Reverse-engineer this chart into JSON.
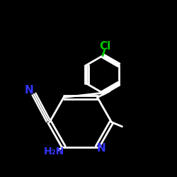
{
  "background_color": "#000000",
  "bond_color": "#ffffff",
  "N_color": "#3333ff",
  "Cl_color": "#00cc00",
  "figsize": [
    2.5,
    2.5
  ],
  "dpi": 100,
  "xlim": [
    0,
    10
  ],
  "ylim": [
    0,
    10
  ]
}
